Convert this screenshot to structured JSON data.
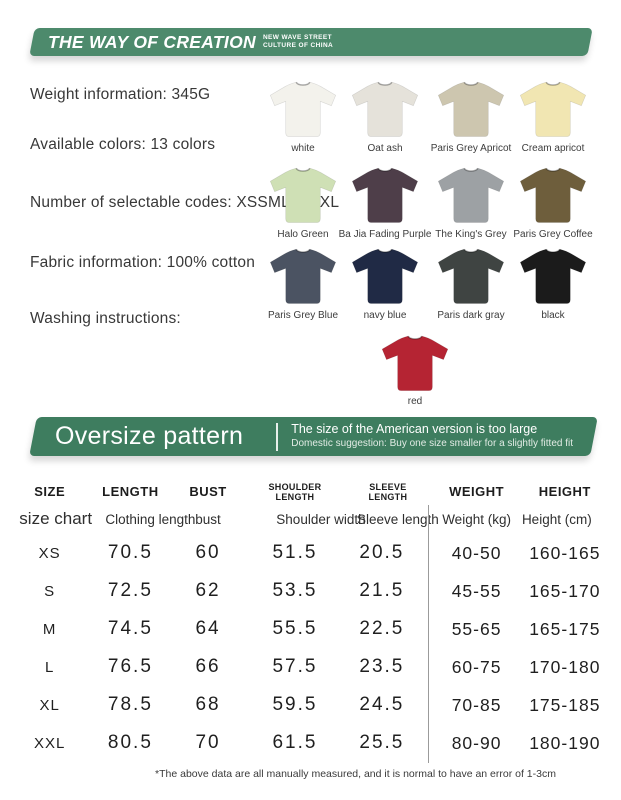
{
  "brand_banner": {
    "title": "THE WAY OF CREATION",
    "subtitle_line1": "NEW WAVE STREET",
    "subtitle_line2": "CULTURE OF CHINA",
    "bg_color": "#4D8A6C"
  },
  "product_info": {
    "weight": "Weight information: 345G",
    "colors": "Available colors: 13 colors",
    "codes": "Number of selectable codes: XSSMLXLXXL",
    "fabric": "Fabric information: 100% cotton",
    "washing": "Washing instructions:"
  },
  "colors_grid": {
    "swatches": [
      {
        "label": "white",
        "hex": "#f3f2ec"
      },
      {
        "label": "Oat ash",
        "hex": "#e5e2da"
      },
      {
        "label": "Paris Grey Apricot",
        "hex": "#cdc6af"
      },
      {
        "label": "Cream apricot",
        "hex": "#f1e6b2"
      },
      {
        "label": "Halo Green",
        "hex": "#cfe0b5"
      },
      {
        "label": "Ba Jia Fading Purple",
        "hex": "#4e3e49"
      },
      {
        "label": "The King's Grey",
        "hex": "#9da1a4"
      },
      {
        "label": "Paris Grey Coffee",
        "hex": "#6e5e3c"
      },
      {
        "label": "Paris Grey Blue",
        "hex": "#4b5362"
      },
      {
        "label": "navy blue",
        "hex": "#202a45"
      },
      {
        "label": "Paris dark gray",
        "hex": "#3f4442"
      },
      {
        "label": "black",
        "hex": "#1b1b1b"
      },
      {
        "label": "red",
        "hex": "#b52433"
      }
    ]
  },
  "oversize_banner": {
    "title": "Oversize pattern",
    "note_line1": "The size of the American version is too large",
    "note_line2": "Domestic suggestion: Buy one size smaller for a slightly fitted fit",
    "bg_color": "#3E7D5F"
  },
  "size_chart": {
    "columns": [
      {
        "bold": "SIZE",
        "sub": "size chart"
      },
      {
        "bold": "LENGTH",
        "sub": "Clothing length"
      },
      {
        "bold": "BUST",
        "sub": "bust"
      },
      {
        "bold": "SHOULDER\nLENGTH",
        "sub": "Shoulder width"
      },
      {
        "bold": "SLEEVE\nLENGTH",
        "sub": "Sleeve length"
      },
      {
        "bold": "WEIGHT",
        "sub": "Weight (kg)"
      },
      {
        "bold": "HEIGHT",
        "sub": "Height (cm)"
      }
    ],
    "rows": [
      [
        "XS",
        "70.5",
        "60",
        "51.5",
        "20.5",
        "40-50",
        "160-165"
      ],
      [
        "S",
        "72.5",
        "62",
        "53.5",
        "21.5",
        "45-55",
        "165-170"
      ],
      [
        "M",
        "74.5",
        "64",
        "55.5",
        "22.5",
        "55-65",
        "165-175"
      ],
      [
        "L",
        "76.5",
        "66",
        "57.5",
        "23.5",
        "60-75",
        "170-180"
      ],
      [
        "XL",
        "78.5",
        "68",
        "59.5",
        "24.5",
        "70-85",
        "175-185"
      ],
      [
        "XXL",
        "80.5",
        "70",
        "61.5",
        "25.5",
        "80-90",
        "180-190"
      ]
    ]
  },
  "footnote": "*The above data are all manually measured, and it is normal to have an error of 1-3cm"
}
